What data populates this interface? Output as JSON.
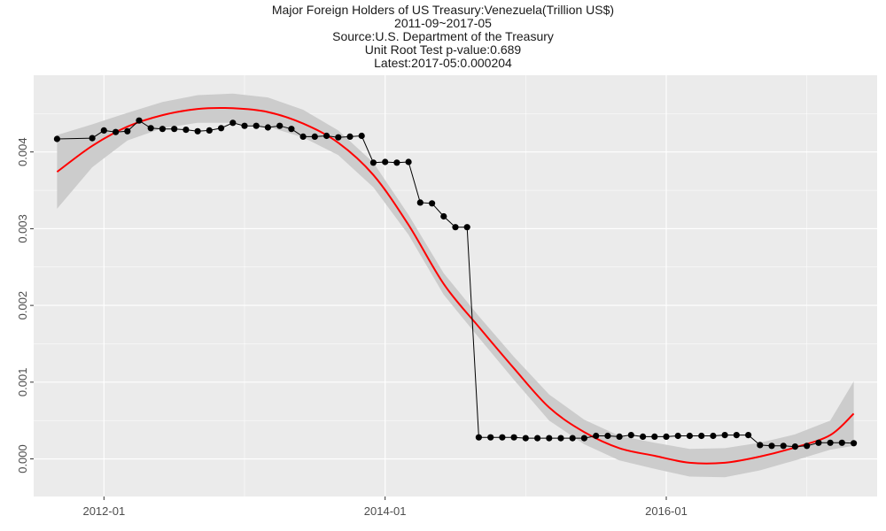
{
  "chart_data": {
    "type": "line",
    "title": "Major Foreign Holders of US Treasury:Venezuela(Trillion US$)",
    "subtitles": [
      "2011-09~2017-05",
      "Source:U.S. Department of the Treasury",
      "Unit Root Test p-value:0.689",
      "Latest:2017-05:0.000204"
    ],
    "xlabel": "",
    "ylabel": "",
    "x_ticks": [
      "2012-01",
      "2014-01",
      "2016-01"
    ],
    "y_ticks": [
      "0.000",
      "0.001",
      "0.002",
      "0.003",
      "0.004"
    ],
    "xlim": [
      "2011-07",
      "2017-07"
    ],
    "ylim": [
      -0.00049,
      0.005
    ],
    "grid": true,
    "legend": "none",
    "colors": {
      "panel": "#ebebeb",
      "grid": "#ffffff",
      "line": "#000000",
      "point": "#000000",
      "smooth": "#ff0000",
      "ribbon": "#cccccc"
    },
    "series": [
      {
        "x": [
          "2011-09",
          "2011-12",
          "2012-01",
          "2012-02",
          "2012-03",
          "2012-04",
          "2012-05",
          "2012-06",
          "2012-07",
          "2012-08",
          "2012-09",
          "2012-10",
          "2012-11",
          "2012-12",
          "2013-01",
          "2013-02",
          "2013-03",
          "2013-04",
          "2013-05",
          "2013-06",
          "2013-07",
          "2013-08",
          "2013-09",
          "2013-10",
          "2013-11",
          "2013-12",
          "2014-01",
          "2014-02",
          "2014-03",
          "2014-04",
          "2014-05",
          "2014-06",
          "2014-07",
          "2014-08",
          "2014-09",
          "2014-10",
          "2014-11",
          "2014-12",
          "2015-01",
          "2015-02",
          "2015-03",
          "2015-04",
          "2015-05",
          "2015-06",
          "2015-07",
          "2015-08",
          "2015-09",
          "2015-10",
          "2015-11",
          "2015-12",
          "2016-01",
          "2016-02",
          "2016-03",
          "2016-04",
          "2016-05",
          "2016-06",
          "2016-07",
          "2016-08",
          "2016-09",
          "2016-10",
          "2016-11",
          "2016-12",
          "2017-01",
          "2017-02",
          "2017-03",
          "2017-04",
          "2017-05"
        ],
        "values": [
          0.00417,
          0.00418,
          0.00428,
          0.00426,
          0.00427,
          0.00441,
          0.00431,
          0.0043,
          0.0043,
          0.00429,
          0.00427,
          0.00428,
          0.00431,
          0.00438,
          0.00434,
          0.00434,
          0.00432,
          0.00434,
          0.0043,
          0.0042,
          0.0042,
          0.00421,
          0.00419,
          0.0042,
          0.00421,
          0.00386,
          0.00387,
          0.00386,
          0.00387,
          0.00334,
          0.00333,
          0.00316,
          0.00302,
          0.00302,
          0.00028,
          0.00028,
          0.00028,
          0.00028,
          0.00027,
          0.00027,
          0.00027,
          0.00027,
          0.00027,
          0.00027,
          0.0003,
          0.0003,
          0.00029,
          0.00031,
          0.00029,
          0.00029,
          0.00029,
          0.0003,
          0.0003,
          0.0003,
          0.0003,
          0.00031,
          0.00031,
          0.00031,
          0.00018,
          0.00017,
          0.00017,
          0.00016,
          0.00017,
          0.00021,
          0.00021,
          0.00021,
          0.000204
        ]
      }
    ],
    "smooth": {
      "x": [
        "2011-09",
        "2011-12",
        "2012-03",
        "2012-06",
        "2012-09",
        "2012-12",
        "2013-03",
        "2013-06",
        "2013-09",
        "2013-12",
        "2014-03",
        "2014-06",
        "2014-09",
        "2014-12",
        "2015-03",
        "2015-06",
        "2015-09",
        "2015-12",
        "2016-03",
        "2016-06",
        "2016-09",
        "2016-12",
        "2017-03",
        "2017-05"
      ],
      "values": [
        0.00374,
        0.00408,
        0.00433,
        0.00448,
        0.00456,
        0.00457,
        0.00452,
        0.00437,
        0.00412,
        0.0037,
        0.00305,
        0.00228,
        0.00172,
        0.00118,
        0.00067,
        0.00035,
        0.00014,
        4e-05,
        -5e-05,
        -5e-05,
        3e-05,
        0.00015,
        0.00031,
        0.00059
      ],
      "ribbon_low": [
        0.00326,
        0.0038,
        0.00415,
        0.00431,
        0.00438,
        0.00438,
        0.00433,
        0.00419,
        0.00396,
        0.00354,
        0.00292,
        0.00214,
        0.00158,
        0.00103,
        0.0005,
        0.00019,
        -2e-05,
        -0.00013,
        -0.00023,
        -0.00024,
        -0.00015,
        -2e-05,
        0.00012,
        0.00017
      ],
      "ribbon_high": [
        0.00422,
        0.00436,
        0.00451,
        0.00465,
        0.00474,
        0.00476,
        0.00471,
        0.00455,
        0.00428,
        0.00386,
        0.00318,
        0.00242,
        0.00186,
        0.00133,
        0.00084,
        0.00051,
        0.0003,
        0.00021,
        0.00013,
        0.00014,
        0.00021,
        0.00032,
        0.0005,
        0.00101
      ]
    }
  }
}
